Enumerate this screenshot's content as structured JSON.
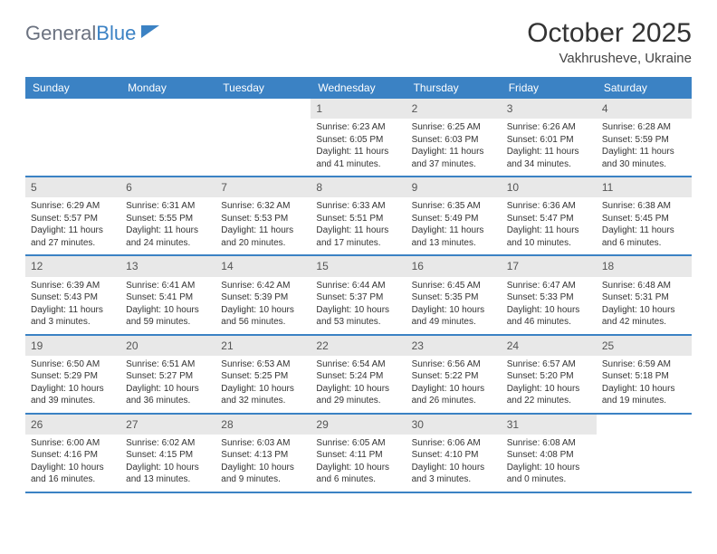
{
  "header": {
    "logo_word1": "General",
    "logo_word2": "Blue",
    "month_title": "October 2025",
    "location": "Vakhrusheve, Ukraine"
  },
  "colors": {
    "brand_blue": "#3b82c4",
    "day_num_bg": "#e8e8e8",
    "text": "#333333"
  },
  "days_of_week": [
    "Sunday",
    "Monday",
    "Tuesday",
    "Wednesday",
    "Thursday",
    "Friday",
    "Saturday"
  ],
  "weeks": [
    [
      null,
      null,
      null,
      {
        "n": "1",
        "sr": "Sunrise: 6:23 AM",
        "ss": "Sunset: 6:05 PM",
        "dl": "Daylight: 11 hours and 41 minutes."
      },
      {
        "n": "2",
        "sr": "Sunrise: 6:25 AM",
        "ss": "Sunset: 6:03 PM",
        "dl": "Daylight: 11 hours and 37 minutes."
      },
      {
        "n": "3",
        "sr": "Sunrise: 6:26 AM",
        "ss": "Sunset: 6:01 PM",
        "dl": "Daylight: 11 hours and 34 minutes."
      },
      {
        "n": "4",
        "sr": "Sunrise: 6:28 AM",
        "ss": "Sunset: 5:59 PM",
        "dl": "Daylight: 11 hours and 30 minutes."
      }
    ],
    [
      {
        "n": "5",
        "sr": "Sunrise: 6:29 AM",
        "ss": "Sunset: 5:57 PM",
        "dl": "Daylight: 11 hours and 27 minutes."
      },
      {
        "n": "6",
        "sr": "Sunrise: 6:31 AM",
        "ss": "Sunset: 5:55 PM",
        "dl": "Daylight: 11 hours and 24 minutes."
      },
      {
        "n": "7",
        "sr": "Sunrise: 6:32 AM",
        "ss": "Sunset: 5:53 PM",
        "dl": "Daylight: 11 hours and 20 minutes."
      },
      {
        "n": "8",
        "sr": "Sunrise: 6:33 AM",
        "ss": "Sunset: 5:51 PM",
        "dl": "Daylight: 11 hours and 17 minutes."
      },
      {
        "n": "9",
        "sr": "Sunrise: 6:35 AM",
        "ss": "Sunset: 5:49 PM",
        "dl": "Daylight: 11 hours and 13 minutes."
      },
      {
        "n": "10",
        "sr": "Sunrise: 6:36 AM",
        "ss": "Sunset: 5:47 PM",
        "dl": "Daylight: 11 hours and 10 minutes."
      },
      {
        "n": "11",
        "sr": "Sunrise: 6:38 AM",
        "ss": "Sunset: 5:45 PM",
        "dl": "Daylight: 11 hours and 6 minutes."
      }
    ],
    [
      {
        "n": "12",
        "sr": "Sunrise: 6:39 AM",
        "ss": "Sunset: 5:43 PM",
        "dl": "Daylight: 11 hours and 3 minutes."
      },
      {
        "n": "13",
        "sr": "Sunrise: 6:41 AM",
        "ss": "Sunset: 5:41 PM",
        "dl": "Daylight: 10 hours and 59 minutes."
      },
      {
        "n": "14",
        "sr": "Sunrise: 6:42 AM",
        "ss": "Sunset: 5:39 PM",
        "dl": "Daylight: 10 hours and 56 minutes."
      },
      {
        "n": "15",
        "sr": "Sunrise: 6:44 AM",
        "ss": "Sunset: 5:37 PM",
        "dl": "Daylight: 10 hours and 53 minutes."
      },
      {
        "n": "16",
        "sr": "Sunrise: 6:45 AM",
        "ss": "Sunset: 5:35 PM",
        "dl": "Daylight: 10 hours and 49 minutes."
      },
      {
        "n": "17",
        "sr": "Sunrise: 6:47 AM",
        "ss": "Sunset: 5:33 PM",
        "dl": "Daylight: 10 hours and 46 minutes."
      },
      {
        "n": "18",
        "sr": "Sunrise: 6:48 AM",
        "ss": "Sunset: 5:31 PM",
        "dl": "Daylight: 10 hours and 42 minutes."
      }
    ],
    [
      {
        "n": "19",
        "sr": "Sunrise: 6:50 AM",
        "ss": "Sunset: 5:29 PM",
        "dl": "Daylight: 10 hours and 39 minutes."
      },
      {
        "n": "20",
        "sr": "Sunrise: 6:51 AM",
        "ss": "Sunset: 5:27 PM",
        "dl": "Daylight: 10 hours and 36 minutes."
      },
      {
        "n": "21",
        "sr": "Sunrise: 6:53 AM",
        "ss": "Sunset: 5:25 PM",
        "dl": "Daylight: 10 hours and 32 minutes."
      },
      {
        "n": "22",
        "sr": "Sunrise: 6:54 AM",
        "ss": "Sunset: 5:24 PM",
        "dl": "Daylight: 10 hours and 29 minutes."
      },
      {
        "n": "23",
        "sr": "Sunrise: 6:56 AM",
        "ss": "Sunset: 5:22 PM",
        "dl": "Daylight: 10 hours and 26 minutes."
      },
      {
        "n": "24",
        "sr": "Sunrise: 6:57 AM",
        "ss": "Sunset: 5:20 PM",
        "dl": "Daylight: 10 hours and 22 minutes."
      },
      {
        "n": "25",
        "sr": "Sunrise: 6:59 AM",
        "ss": "Sunset: 5:18 PM",
        "dl": "Daylight: 10 hours and 19 minutes."
      }
    ],
    [
      {
        "n": "26",
        "sr": "Sunrise: 6:00 AM",
        "ss": "Sunset: 4:16 PM",
        "dl": "Daylight: 10 hours and 16 minutes."
      },
      {
        "n": "27",
        "sr": "Sunrise: 6:02 AM",
        "ss": "Sunset: 4:15 PM",
        "dl": "Daylight: 10 hours and 13 minutes."
      },
      {
        "n": "28",
        "sr": "Sunrise: 6:03 AM",
        "ss": "Sunset: 4:13 PM",
        "dl": "Daylight: 10 hours and 9 minutes."
      },
      {
        "n": "29",
        "sr": "Sunrise: 6:05 AM",
        "ss": "Sunset: 4:11 PM",
        "dl": "Daylight: 10 hours and 6 minutes."
      },
      {
        "n": "30",
        "sr": "Sunrise: 6:06 AM",
        "ss": "Sunset: 4:10 PM",
        "dl": "Daylight: 10 hours and 3 minutes."
      },
      {
        "n": "31",
        "sr": "Sunrise: 6:08 AM",
        "ss": "Sunset: 4:08 PM",
        "dl": "Daylight: 10 hours and 0 minutes."
      },
      null
    ]
  ]
}
